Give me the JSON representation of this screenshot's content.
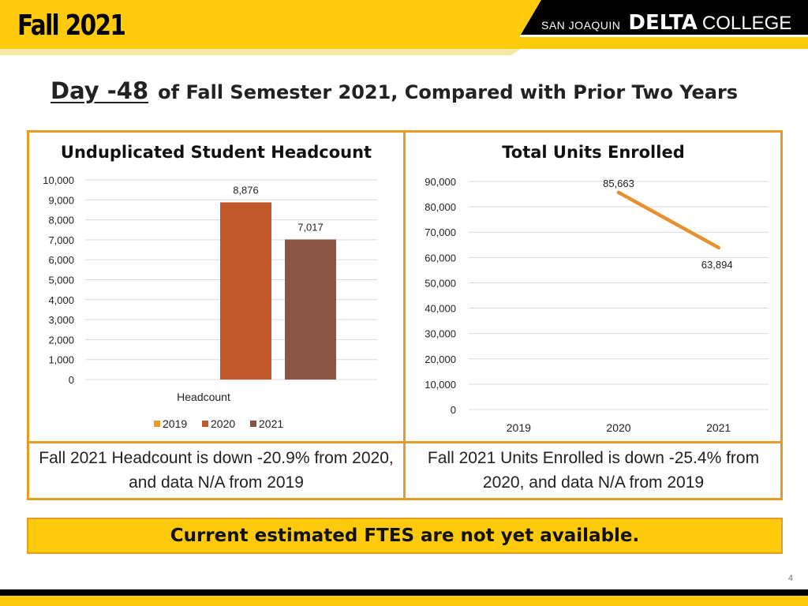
{
  "header": {
    "title": "Fall 2021",
    "brand_prefix": "SAN JOAQUIN",
    "brand_main": "DELTA",
    "brand_suffix": "COLLEGE"
  },
  "subtitle": {
    "day_label": "Day -48",
    "rest": "of Fall Semester 2021, Compared with Prior Two Years"
  },
  "colors": {
    "accent_yellow": "#fdca0c",
    "frame_orange": "#e69b27",
    "series_2019": "#e69b27",
    "series_2020": "#c0582c",
    "series_2021": "#8a5542",
    "units_line": "#e8902e"
  },
  "chart_data": [
    {
      "type": "bar",
      "title": "Unduplicated Student Headcount",
      "categories": [
        "Headcount"
      ],
      "series": [
        {
          "name": "2019",
          "values": [
            null
          ],
          "color": "#e69b27"
        },
        {
          "name": "2020",
          "values": [
            8876
          ],
          "label": "8,876",
          "color": "#c0582c"
        },
        {
          "name": "2021",
          "values": [
            7017
          ],
          "label": "7,017",
          "color": "#8a5542"
        }
      ],
      "ylim": [
        0,
        10000
      ],
      "yticks": [
        0,
        1000,
        2000,
        3000,
        4000,
        5000,
        6000,
        7000,
        8000,
        9000,
        10000
      ],
      "ytick_labels": [
        "0",
        "1,000",
        "2,000",
        "3,000",
        "4,000",
        "5,000",
        "6,000",
        "7,000",
        "8,000",
        "9,000",
        "10,000"
      ],
      "xlabel": "Headcount",
      "legend": "bottom",
      "grid": true
    },
    {
      "type": "line",
      "title": "Total Units Enrolled",
      "categories": [
        "2019",
        "2020",
        "2021"
      ],
      "series": [
        {
          "values": [
            null,
            85663,
            63894
          ],
          "labels": [
            "",
            "85,663",
            "63,894"
          ],
          "color": "#e8902e"
        }
      ],
      "ylim": [
        0,
        90000
      ],
      "yticks": [
        0,
        10000,
        20000,
        30000,
        40000,
        50000,
        60000,
        70000,
        80000,
        90000
      ],
      "ytick_labels": [
        "0",
        "10,000",
        "20,000",
        "30,000",
        "40,000",
        "50,000",
        "60,000",
        "70,000",
        "80,000",
        "90,000"
      ],
      "legend": "none",
      "grid": true
    }
  ],
  "summaries": {
    "headcount": "Fall 2021 Headcount is down -20.9% from 2020, and data N/A from 2019",
    "units": "Fall 2021 Units Enrolled is down -25.4% from 2020, and data N/A from 2019"
  },
  "ftes_notice": "Current estimated FTES are not yet available.",
  "page_number": "4"
}
